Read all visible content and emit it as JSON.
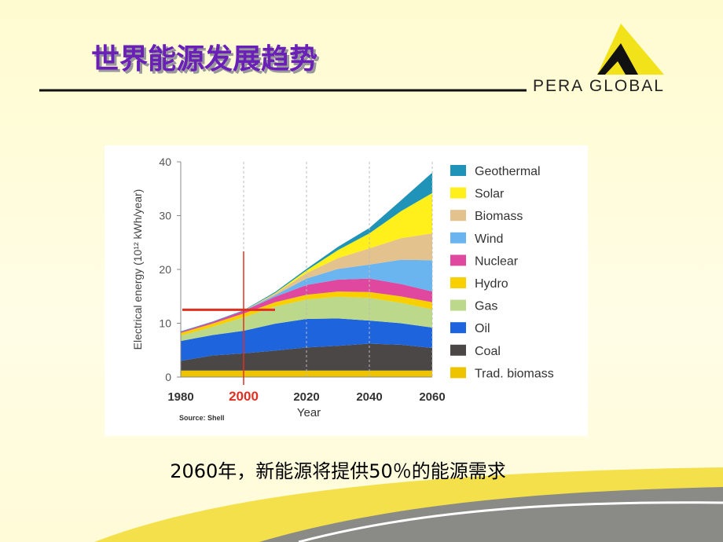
{
  "slide": {
    "title": "世界能源发展趋势",
    "logo_text": "PERA GLOBAL",
    "caption": "2060年，新能源将提供50％的能源需求"
  },
  "chart_data": {
    "type": "stacked-area",
    "y_label": "Electrical energy (10¹² kWh/year)",
    "x_label": "Year",
    "source": "Source: Shell",
    "x": [
      1980,
      1990,
      2000,
      2010,
      2020,
      2030,
      2040,
      2050,
      2060
    ],
    "xlim": [
      1980,
      2060
    ],
    "xticks": [
      1980,
      2000,
      2020,
      2040,
      2060
    ],
    "ylim": [
      0,
      40
    ],
    "yticks": [
      0,
      10,
      20,
      30,
      40
    ],
    "highlight_x": 2000,
    "highlight_y": 12.5,
    "highlight_color": "#e03020",
    "series": [
      {
        "name": "Trad. biomass",
        "color": "#eec400",
        "values": [
          1.2,
          1.2,
          1.2,
          1.2,
          1.2,
          1.2,
          1.2,
          1.2,
          1.2
        ]
      },
      {
        "name": "Coal",
        "color": "#4a4746",
        "values": [
          1.8,
          2.8,
          3.2,
          3.7,
          4.3,
          4.6,
          5.0,
          4.8,
          4.2
        ]
      },
      {
        "name": "Oil",
        "color": "#1e64dc",
        "values": [
          3.7,
          3.8,
          4.2,
          5.0,
          5.3,
          5.1,
          4.3,
          4.0,
          3.8
        ]
      },
      {
        "name": "Gas",
        "color": "#bcd88a",
        "values": [
          1.0,
          1.5,
          2.5,
          3.2,
          3.6,
          4.0,
          4.2,
          3.8,
          3.4
        ]
      },
      {
        "name": "Hydro",
        "color": "#f8d000",
        "values": [
          0.5,
          0.6,
          0.7,
          0.8,
          0.9,
          1.0,
          1.1,
          1.2,
          1.3
        ]
      },
      {
        "name": "Nuclear",
        "color": "#e0479e",
        "values": [
          0.2,
          0.3,
          0.5,
          1.0,
          1.8,
          2.2,
          2.5,
          2.3,
          2.0
        ]
      },
      {
        "name": "Wind",
        "color": "#6ab4f0",
        "values": [
          0,
          0,
          0,
          0.3,
          1.2,
          2.0,
          2.6,
          4.5,
          5.8
        ]
      },
      {
        "name": "Biomass",
        "color": "#e3c28e",
        "values": [
          0,
          0,
          0,
          0.3,
          1.0,
          2.0,
          3.0,
          4.0,
          5.0
        ]
      },
      {
        "name": "Solar",
        "color": "#ffef1a",
        "values": [
          0,
          0,
          0,
          0.1,
          0.5,
          1.5,
          2.8,
          5.0,
          7.5
        ]
      },
      {
        "name": "Geothermal",
        "color": "#1f93b8",
        "values": [
          0.1,
          0.1,
          0.1,
          0.2,
          0.3,
          0.6,
          1.0,
          2.0,
          3.8
        ]
      }
    ]
  }
}
